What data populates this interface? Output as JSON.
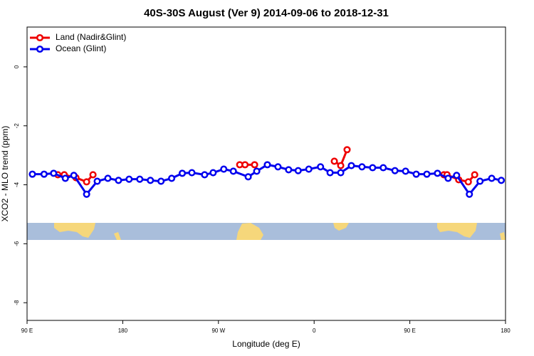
{
  "chart_data": {
    "type": "line",
    "title": "40S-30S August (Ver 9)   2014-09-06 to 2018-12-31",
    "x_label": "Longitude (deg E)",
    "y_label": "XCO2 - MLO trend (ppm)",
    "xlim": [
      90,
      540
    ],
    "ylim": [
      -8.6,
      1.35
    ],
    "xticks": [
      {
        "value": 90,
        "label": "90 E"
      },
      {
        "value": 180,
        "label": "180"
      },
      {
        "value": 270,
        "label": "90 W"
      },
      {
        "value": 360,
        "label": "0"
      },
      {
        "value": 450,
        "label": "90 E"
      },
      {
        "value": 540,
        "label": "180"
      }
    ],
    "yticks": [
      0,
      -2,
      -4,
      -6,
      -8
    ],
    "legend": "top-left",
    "series": [
      {
        "name": "Land (Nadir&Glint)",
        "color": "#ee0000",
        "x": [
          119,
          125,
          136,
          146,
          152,
          200,
          290,
          295,
          304,
          340,
          379,
          385,
          391,
          440,
          482,
          485,
          496,
          505,
          511
        ],
        "values": [
          -3.66,
          -3.66,
          -3.76,
          -3.9,
          -3.66,
          null,
          -3.32,
          -3.32,
          -3.32,
          null,
          -3.2,
          -3.35,
          -2.81,
          null,
          -3.66,
          -3.66,
          -3.83,
          -3.9,
          -3.66
        ]
      },
      {
        "name": "Ocean (Glint)",
        "color": "#0000ee",
        "x": [
          95,
          106,
          115,
          126,
          134,
          146,
          156,
          166,
          176,
          186,
          196,
          206,
          216,
          226,
          236,
          245,
          257,
          265,
          275,
          284,
          298,
          306,
          316,
          326,
          336,
          345,
          355,
          366,
          375,
          385,
          395,
          405,
          415,
          425,
          436,
          446,
          456,
          466,
          476,
          486,
          494,
          506,
          516,
          527,
          536
        ],
        "values": [
          -3.64,
          -3.64,
          -3.61,
          -3.78,
          -3.68,
          -4.32,
          -3.88,
          -3.78,
          -3.85,
          -3.81,
          -3.81,
          -3.85,
          -3.88,
          -3.78,
          -3.61,
          -3.59,
          -3.66,
          -3.59,
          -3.47,
          -3.54,
          -3.73,
          -3.54,
          -3.32,
          -3.39,
          -3.49,
          -3.52,
          -3.47,
          -3.39,
          -3.59,
          -3.59,
          -3.35,
          -3.39,
          -3.42,
          -3.42,
          -3.52,
          -3.54,
          -3.64,
          -3.64,
          -3.61,
          -3.78,
          -3.68,
          -4.32,
          -3.88,
          -3.78,
          -3.85
        ]
      }
    ]
  }
}
